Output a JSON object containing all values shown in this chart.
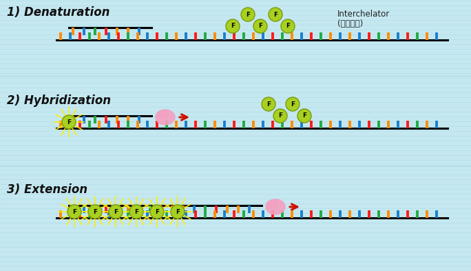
{
  "bg_color": "#c5e8f0",
  "title_color": "#111111",
  "section_titles": [
    "1) Denaturation",
    "2) Hybridization",
    "3) Extension"
  ],
  "interchelator_label1": "Interchelator",
  "interchelator_label2": "(형광물질)",
  "dna_colors_bot": [
    "#ff8c00",
    "#1a7fcc",
    "#ff1a1a",
    "#22aa44",
    "#ff8c00",
    "#1a7fcc",
    "#ff1a1a",
    "#22aa44",
    "#ff8c00",
    "#1a7fcc",
    "#ff1a1a",
    "#22aa44",
    "#ff8c00",
    "#1a7fcc",
    "#ff1a1a",
    "#22aa44",
    "#ff8c00",
    "#1a7fcc",
    "#ff1a1a",
    "#22aa44",
    "#ff8c00",
    "#1a7fcc",
    "#ff1a1a",
    "#22aa44",
    "#ff8c00",
    "#1a7fcc",
    "#ff1a1a",
    "#22aa44",
    "#ff8c00",
    "#1a7fcc"
  ],
  "dna_colors_top": [
    "#ff8c00",
    "#1a7fcc",
    "#22aa44",
    "#ff1a1a",
    "#ff8c00"
  ],
  "f_ball_color": "#a8d020",
  "f_ball_edge": "#7a9a10",
  "polymerase_color": "#f4a0c0",
  "arrow_color": "#cc1100",
  "star_color": "#ffee00"
}
